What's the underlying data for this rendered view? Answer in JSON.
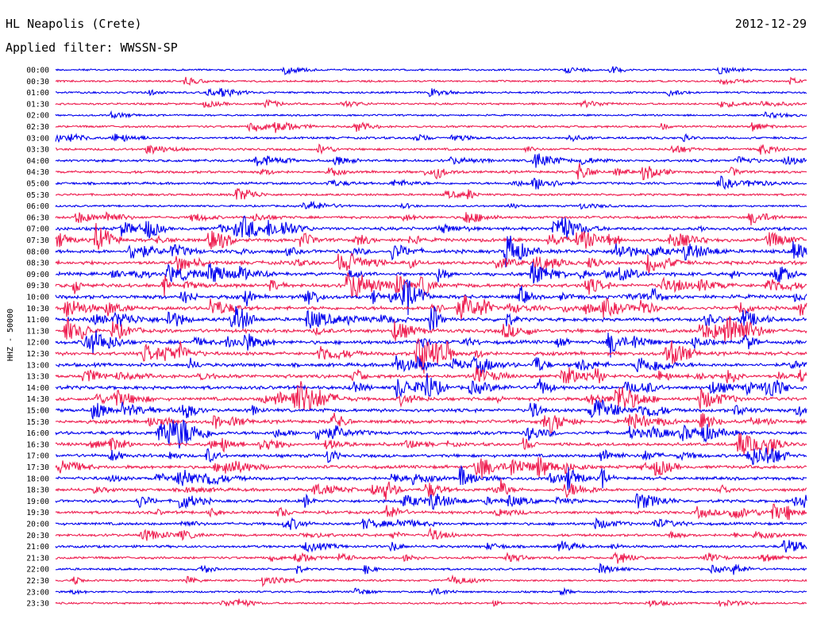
{
  "header": {
    "station": "HL Neapolis (Crete)",
    "date": "2012-12-29",
    "filter": "Applied filter: WWSSN-SP"
  },
  "chart_data": {
    "type": "line",
    "ylabel": "HHZ - 50000",
    "colors": [
      "#0000ee",
      "#ee1e50"
    ],
    "ticks": [
      "00:00",
      "00:30",
      "01:00",
      "01:30",
      "02:00",
      "02:30",
      "03:00",
      "03:30",
      "04:00",
      "04:30",
      "05:00",
      "05:30",
      "06:00",
      "06:30",
      "07:00",
      "07:30",
      "08:00",
      "08:30",
      "09:00",
      "09:30",
      "10:00",
      "10:30",
      "11:00",
      "11:30",
      "12:00",
      "12:30",
      "13:00",
      "13:30",
      "14:00",
      "14:30",
      "15:00",
      "15:30",
      "16:00",
      "16:30",
      "17:00",
      "17:30",
      "18:00",
      "18:30",
      "19:00",
      "19:30",
      "20:00",
      "20:30",
      "21:00",
      "21:30",
      "22:00",
      "22:30",
      "23:00",
      "23:30"
    ],
    "activity": [
      0.15,
      0.18,
      0.2,
      0.22,
      0.15,
      0.3,
      0.35,
      0.35,
      0.45,
      0.45,
      0.4,
      0.3,
      0.2,
      0.45,
      0.7,
      0.8,
      0.85,
      0.85,
      0.85,
      0.9,
      0.9,
      0.85,
      0.85,
      0.85,
      0.85,
      0.8,
      0.8,
      0.8,
      0.8,
      0.75,
      0.75,
      0.75,
      0.75,
      0.7,
      0.7,
      0.7,
      0.7,
      0.65,
      0.6,
      0.55,
      0.5,
      0.45,
      0.45,
      0.4,
      0.3,
      0.25,
      0.2,
      0.2
    ]
  }
}
